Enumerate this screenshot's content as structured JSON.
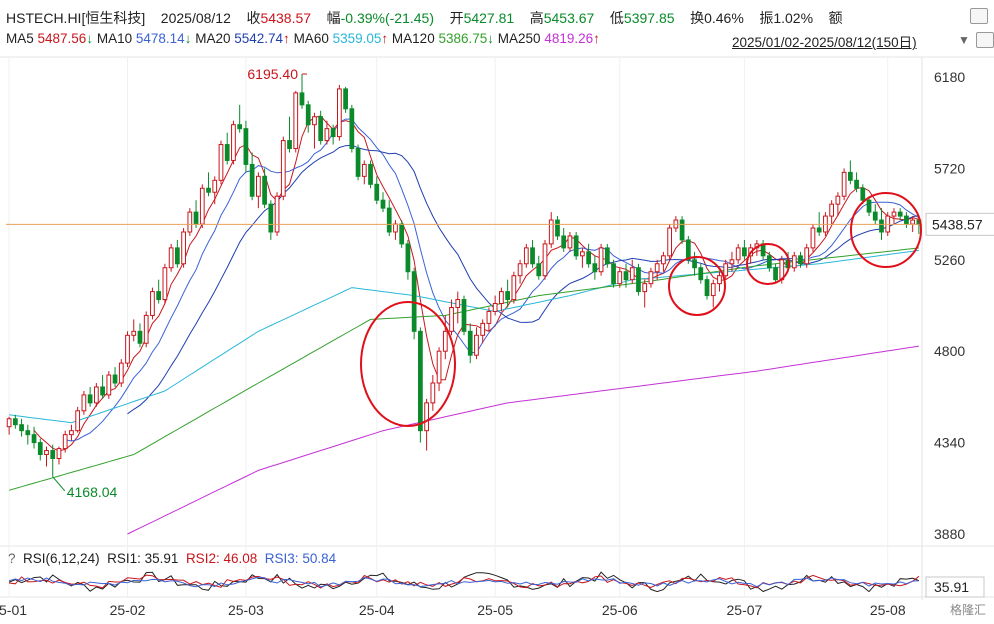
{
  "header": {
    "symbol": "HSTECH.HI[恒生科技]",
    "date": "2025/08/12",
    "close_label": "收",
    "close": "5438.57",
    "change_label": "幅",
    "change": "-0.39%(-21.45)",
    "open_label": "开",
    "open": "5427.81",
    "high_label": "高",
    "high": "5453.67",
    "low_label": "低",
    "low": "5397.85",
    "turnover_label": "换",
    "turnover": "0.46%",
    "amplitude_label": "振",
    "amplitude": "1.02%",
    "amount_label": "额"
  },
  "ma_legend": [
    {
      "label": "MA5",
      "value": "5487.56",
      "dir": "↓",
      "color": "#c8161d"
    },
    {
      "label": "MA10",
      "value": "5478.14",
      "dir": "↓",
      "color": "#3b62d6"
    },
    {
      "label": "MA20",
      "value": "5542.74",
      "dir": "↑",
      "color": "#1f3fb0"
    },
    {
      "label": "MA60",
      "value": "5359.05",
      "dir": "↑",
      "color": "#29b7d8"
    },
    {
      "label": "MA120",
      "value": "5386.75",
      "dir": "↓",
      "color": "#33a02c"
    },
    {
      "label": "MA250",
      "value": "4819.26",
      "dir": "↑",
      "color": "#c431d6"
    }
  ],
  "range": "2025/01/02-2025/08/12(150日)",
  "rsi_legend": {
    "help": "?",
    "title": "RSI(6,12,24)",
    "rsi1_label": "RSI1:",
    "rsi1": "35.91",
    "rsi2_label": "RSI2:",
    "rsi2": "46.08",
    "rsi3_label": "RSI3:",
    "rsi3": "50.84",
    "current": "35.91"
  },
  "watermark": "格隆汇",
  "chart_data": {
    "type": "candlestick",
    "y_ticks": [
      6180,
      5720,
      5260,
      4800,
      4340,
      3880
    ],
    "ylim": [
      3880,
      6180
    ],
    "x_ticks": [
      "25-01",
      "25-02",
      "25-03",
      "25-04",
      "25-05",
      "25-06",
      "25-07",
      "25-08"
    ],
    "x_tick_index": [
      0,
      19,
      38,
      59,
      78,
      98,
      118,
      141
    ],
    "current_price": 5438.57,
    "annotations": [
      {
        "text": "6195.40",
        "type": "high",
        "index": 47
      },
      {
        "text": "4168.04",
        "type": "low",
        "index": 7
      }
    ],
    "circles_note": "four red circles marking support zones",
    "candles": [
      [
        4420,
        4470,
        4380,
        4460
      ],
      [
        4460,
        4480,
        4410,
        4430
      ],
      [
        4430,
        4460,
        4370,
        4400
      ],
      [
        4400,
        4430,
        4330,
        4380
      ],
      [
        4380,
        4420,
        4310,
        4340
      ],
      [
        4340,
        4360,
        4250,
        4280
      ],
      [
        4280,
        4320,
        4220,
        4300
      ],
      [
        4300,
        4330,
        4168,
        4260
      ],
      [
        4260,
        4320,
        4230,
        4310
      ],
      [
        4310,
        4400,
        4290,
        4380
      ],
      [
        4380,
        4430,
        4350,
        4400
      ],
      [
        4400,
        4520,
        4390,
        4500
      ],
      [
        4500,
        4600,
        4480,
        4580
      ],
      [
        4580,
        4620,
        4520,
        4540
      ],
      [
        4540,
        4640,
        4520,
        4620
      ],
      [
        4620,
        4680,
        4560,
        4580
      ],
      [
        4580,
        4700,
        4560,
        4680
      ],
      [
        4680,
        4720,
        4620,
        4640
      ],
      [
        4640,
        4760,
        4620,
        4740
      ],
      [
        4740,
        4900,
        4720,
        4880
      ],
      [
        4880,
        4960,
        4850,
        4900
      ],
      [
        4900,
        4940,
        4820,
        4840
      ],
      [
        4840,
        5000,
        4820,
        4980
      ],
      [
        4980,
        5120,
        4960,
        5100
      ],
      [
        5100,
        5160,
        5040,
        5060
      ],
      [
        5060,
        5240,
        5040,
        5220
      ],
      [
        5220,
        5340,
        5200,
        5320
      ],
      [
        5320,
        5360,
        5220,
        5240
      ],
      [
        5240,
        5420,
        5220,
        5400
      ],
      [
        5400,
        5520,
        5380,
        5500
      ],
      [
        5500,
        5560,
        5420,
        5440
      ],
      [
        5440,
        5640,
        5420,
        5620
      ],
      [
        5620,
        5700,
        5580,
        5600
      ],
      [
        5600,
        5680,
        5540,
        5660
      ],
      [
        5660,
        5860,
        5640,
        5840
      ],
      [
        5840,
        5900,
        5740,
        5760
      ],
      [
        5760,
        5960,
        5740,
        5940
      ],
      [
        5940,
        6040,
        5900,
        5920
      ],
      [
        5920,
        5960,
        5700,
        5740
      ],
      [
        5740,
        5800,
        5560,
        5580
      ],
      [
        5580,
        5700,
        5520,
        5680
      ],
      [
        5680,
        5720,
        5520,
        5540
      ],
      [
        5540,
        5560,
        5360,
        5400
      ],
      [
        5400,
        5600,
        5380,
        5580
      ],
      [
        5580,
        5880,
        5560,
        5860
      ],
      [
        5860,
        5980,
        5800,
        5820
      ],
      [
        5820,
        6110,
        5800,
        6100
      ],
      [
        6100,
        6195,
        6020,
        6040
      ],
      [
        6040,
        6060,
        5900,
        5940
      ],
      [
        5940,
        6000,
        5820,
        5980
      ],
      [
        5980,
        6010,
        5840,
        5860
      ],
      [
        5860,
        5960,
        5840,
        5920
      ],
      [
        5920,
        5940,
        5840,
        5880
      ],
      [
        5880,
        6140,
        5860,
        6120
      ],
      [
        6120,
        6130,
        6000,
        6020
      ],
      [
        6020,
        6040,
        5800,
        5820
      ],
      [
        5820,
        5840,
        5660,
        5680
      ],
      [
        5680,
        5760,
        5640,
        5740
      ],
      [
        5740,
        5760,
        5620,
        5640
      ],
      [
        5640,
        5680,
        5540,
        5560
      ],
      [
        5560,
        5600,
        5500,
        5520
      ],
      [
        5520,
        5560,
        5380,
        5400
      ],
      [
        5400,
        5460,
        5360,
        5440
      ],
      [
        5440,
        5460,
        5320,
        5340
      ],
      [
        5340,
        5360,
        5160,
        5200
      ],
      [
        5200,
        5220,
        4860,
        4900
      ],
      [
        4900,
        4920,
        4340,
        4400
      ],
      [
        4400,
        4560,
        4300,
        4540
      ],
      [
        4540,
        4680,
        4500,
        4640
      ],
      [
        4640,
        4820,
        4600,
        4800
      ],
      [
        4800,
        4980,
        4760,
        4900
      ],
      [
        4900,
        5060,
        4880,
        5020
      ],
      [
        5020,
        5100,
        4940,
        5060
      ],
      [
        5060,
        5080,
        4880,
        4900
      ],
      [
        4900,
        4940,
        4740,
        4780
      ],
      [
        4780,
        4920,
        4760,
        4880
      ],
      [
        4880,
        4960,
        4840,
        4940
      ],
      [
        4940,
        5020,
        4900,
        5000
      ],
      [
        5000,
        5080,
        4980,
        5040
      ],
      [
        5040,
        5120,
        5000,
        5100
      ],
      [
        5100,
        5160,
        5020,
        5060
      ],
      [
        5060,
        5200,
        5040,
        5180
      ],
      [
        5180,
        5260,
        5140,
        5240
      ],
      [
        5240,
        5340,
        5220,
        5320
      ],
      [
        5320,
        5360,
        5220,
        5240
      ],
      [
        5240,
        5280,
        5160,
        5180
      ],
      [
        5180,
        5360,
        5160,
        5340
      ],
      [
        5340,
        5500,
        5320,
        5460
      ],
      [
        5460,
        5480,
        5360,
        5380
      ],
      [
        5380,
        5420,
        5300,
        5320
      ],
      [
        5320,
        5400,
        5300,
        5380
      ],
      [
        5380,
        5400,
        5260,
        5280
      ],
      [
        5280,
        5320,
        5220,
        5300
      ],
      [
        5300,
        5340,
        5220,
        5240
      ],
      [
        5240,
        5280,
        5160,
        5200
      ],
      [
        5200,
        5340,
        5180,
        5320
      ],
      [
        5320,
        5340,
        5220,
        5240
      ],
      [
        5240,
        5260,
        5120,
        5140
      ],
      [
        5140,
        5220,
        5120,
        5200
      ],
      [
        5200,
        5240,
        5120,
        5160
      ],
      [
        5160,
        5260,
        5140,
        5220
      ],
      [
        5220,
        5240,
        5080,
        5100
      ],
      [
        5100,
        5160,
        5020,
        5140
      ],
      [
        5140,
        5220,
        5120,
        5200
      ],
      [
        5200,
        5260,
        5160,
        5240
      ],
      [
        5240,
        5300,
        5200,
        5280
      ],
      [
        5280,
        5440,
        5260,
        5420
      ],
      [
        5420,
        5480,
        5400,
        5460
      ],
      [
        5460,
        5480,
        5340,
        5360
      ],
      [
        5360,
        5380,
        5240,
        5260
      ],
      [
        5260,
        5300,
        5180,
        5220
      ],
      [
        5220,
        5240,
        5140,
        5160
      ],
      [
        5160,
        5180,
        5060,
        5080
      ],
      [
        5080,
        5160,
        5020,
        5140
      ],
      [
        5140,
        5200,
        5100,
        5180
      ],
      [
        5180,
        5260,
        5160,
        5240
      ],
      [
        5240,
        5300,
        5200,
        5260
      ],
      [
        5260,
        5340,
        5240,
        5320
      ],
      [
        5320,
        5360,
        5260,
        5280
      ],
      [
        5280,
        5340,
        5240,
        5320
      ],
      [
        5320,
        5360,
        5280,
        5340
      ],
      [
        5340,
        5360,
        5260,
        5280
      ],
      [
        5280,
        5300,
        5200,
        5220
      ],
      [
        5220,
        5240,
        5140,
        5160
      ],
      [
        5160,
        5280,
        5140,
        5260
      ],
      [
        5260,
        5300,
        5200,
        5220
      ],
      [
        5220,
        5300,
        5200,
        5280
      ],
      [
        5280,
        5300,
        5220,
        5240
      ],
      [
        5240,
        5340,
        5220,
        5320
      ],
      [
        5320,
        5440,
        5300,
        5420
      ],
      [
        5420,
        5500,
        5380,
        5400
      ],
      [
        5400,
        5500,
        5380,
        5480
      ],
      [
        5480,
        5560,
        5440,
        5540
      ],
      [
        5540,
        5600,
        5480,
        5580
      ],
      [
        5580,
        5720,
        5560,
        5700
      ],
      [
        5700,
        5760,
        5640,
        5660
      ],
      [
        5660,
        5700,
        5600,
        5620
      ],
      [
        5620,
        5640,
        5540,
        5560
      ],
      [
        5560,
        5580,
        5480,
        5500
      ],
      [
        5500,
        5540,
        5440,
        5460
      ],
      [
        5460,
        5520,
        5360,
        5400
      ],
      [
        5400,
        5500,
        5380,
        5480
      ],
      [
        5480,
        5520,
        5440,
        5500
      ],
      [
        5500,
        5520,
        5460,
        5480
      ],
      [
        5480,
        5500,
        5420,
        5440
      ],
      [
        5440,
        5480,
        5400,
        5460
      ],
      [
        5460,
        5470,
        5390,
        5438
      ]
    ]
  }
}
